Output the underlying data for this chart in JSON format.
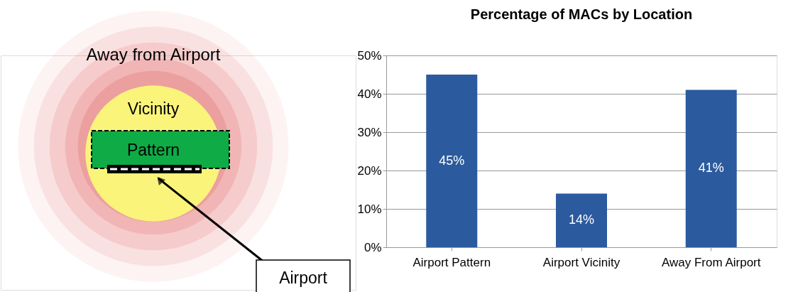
{
  "chart_data": {
    "type": "bar",
    "title": "Percentage of MACs by Location",
    "categories": [
      "Airport Pattern",
      "Airport Vicinity",
      "Away From Airport"
    ],
    "values": [
      45,
      14,
      41
    ],
    "value_labels": [
      "45%",
      "14%",
      "41%"
    ],
    "color": "#2b5a9e",
    "ylim": [
      0,
      50
    ],
    "yticks": [
      {
        "value": 0,
        "label": "0%"
      },
      {
        "value": 10,
        "label": "10%"
      },
      {
        "value": 20,
        "label": "20%"
      },
      {
        "value": 30,
        "label": "30%"
      },
      {
        "value": 40,
        "label": "40%"
      },
      {
        "value": 50,
        "label": "50%"
      }
    ],
    "grid": "y",
    "annotations": [
      "Away from Airport",
      "Vicinity",
      "Pattern",
      "Airport"
    ]
  }
}
